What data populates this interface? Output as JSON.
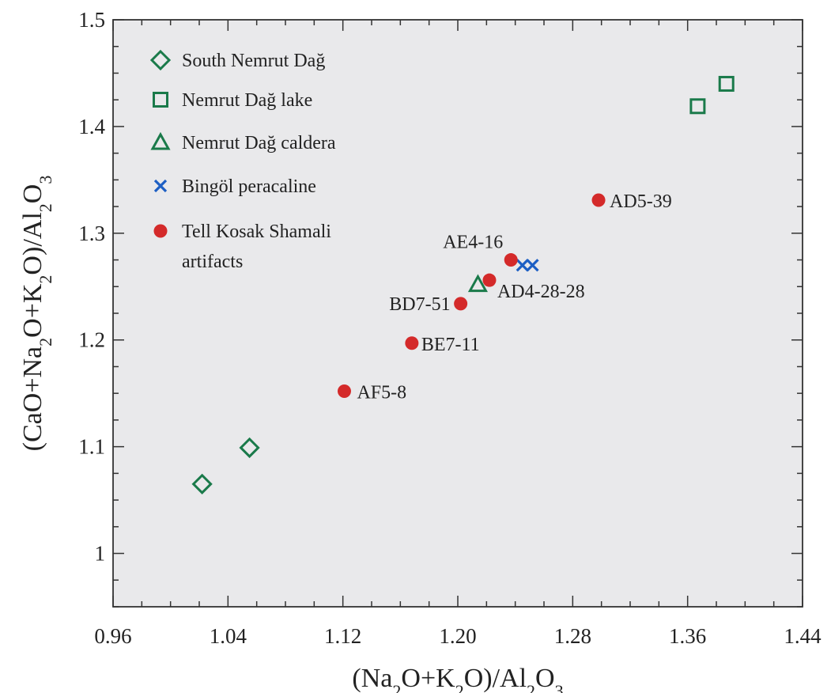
{
  "chart_data": {
    "type": "scatter",
    "xlabel_parts": [
      "(Na",
      "2",
      "O+K",
      "2",
      "O)/Al",
      "2",
      "O",
      "3"
    ],
    "ylabel_parts": [
      "(CaO+Na",
      "2",
      "O+K",
      "2",
      "O)/Al",
      "2",
      "O",
      "3"
    ],
    "xlim": [
      0.96,
      1.44
    ],
    "ylim": [
      0.95,
      1.5
    ],
    "x_ticks": [
      "0.96",
      "1.04",
      "1.12",
      "1.20",
      "1.28",
      "1.36",
      "1.44"
    ],
    "y_ticks": [
      "1",
      "1.1",
      "1.2",
      "1.3",
      "1.4",
      "1.5"
    ],
    "legend_position": "top-left",
    "colors": {
      "green": "#1a7a4a",
      "blue": "#1d5fc4",
      "red": "#d42a2a",
      "background": "#e9e9eb"
    },
    "series": [
      {
        "name": "South Nemrut Dağ",
        "marker": "diamond",
        "color": "#1a7a4a",
        "points": [
          {
            "x": 1.022,
            "y": 1.065
          },
          {
            "x": 1.055,
            "y": 1.099
          }
        ]
      },
      {
        "name": "Nemrut Dağ lake",
        "marker": "square",
        "color": "#1a7a4a",
        "points": [
          {
            "x": 1.367,
            "y": 1.419
          },
          {
            "x": 1.387,
            "y": 1.44
          }
        ]
      },
      {
        "name": "Nemrut Dağ caldera",
        "marker": "triangle",
        "color": "#1a7a4a",
        "points": [
          {
            "x": 1.214,
            "y": 1.252
          }
        ]
      },
      {
        "name": "Bingöl peracaline",
        "marker": "cross",
        "color": "#1d5fc4",
        "points": [
          {
            "x": 1.245,
            "y": 1.27
          },
          {
            "x": 1.252,
            "y": 1.27
          }
        ]
      },
      {
        "name": "Tell Kosak Shamali artifacts",
        "name_lines": [
          "Tell Kosak Shamali",
          "artifacts"
        ],
        "marker": "circle",
        "color": "#d42a2a",
        "points": [
          {
            "x": 1.298,
            "y": 1.331,
            "label": "AD5-39"
          },
          {
            "x": 1.237,
            "y": 1.275,
            "label": "AE4-16"
          },
          {
            "x": 1.222,
            "y": 1.256,
            "label": "AD4-28-28"
          },
          {
            "x": 1.202,
            "y": 1.234,
            "label": "BD7-51"
          },
          {
            "x": 1.168,
            "y": 1.197,
            "label": "BE7-11"
          },
          {
            "x": 1.121,
            "y": 1.152,
            "label": "AF5-8"
          }
        ]
      }
    ]
  }
}
